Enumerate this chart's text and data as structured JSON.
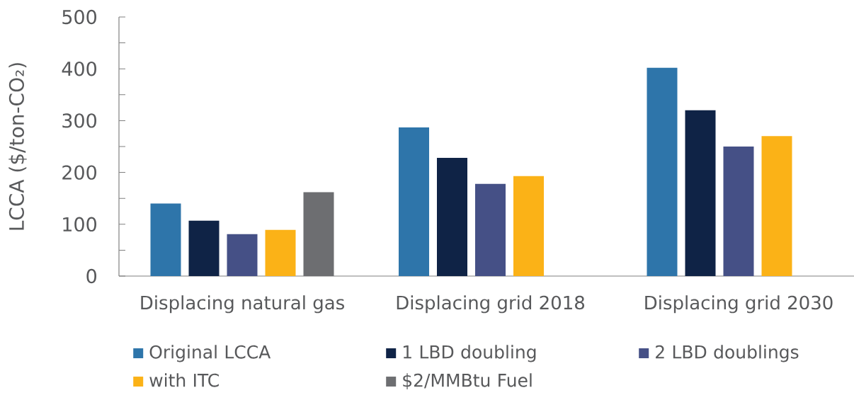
{
  "chart_data": {
    "type": "bar",
    "ylabel": "LCCA ($/ton-CO₂)",
    "categories": [
      "Displacing natural gas",
      "Displacing grid 2018",
      "Displacing grid 2030"
    ],
    "series": [
      {
        "name": "Original LCCA",
        "color": "#2e75aa",
        "values": [
          140,
          287,
          402
        ]
      },
      {
        "name": "1 LBD doubling",
        "color": "#0f2346",
        "values": [
          107,
          228,
          320
        ]
      },
      {
        "name": "2 LBD doublings",
        "color": "#455086",
        "values": [
          81,
          178,
          250
        ]
      },
      {
        "name": "with ITC",
        "color": "#fbb217",
        "values": [
          89,
          193,
          270
        ]
      },
      {
        "name": "$2/MMBtu Fuel",
        "color": "#6d6e71",
        "values": [
          162,
          null,
          null
        ]
      }
    ],
    "ylim": [
      0,
      500
    ],
    "yticks": [
      0,
      {
        "value": 50,
        "label": null
      },
      100,
      {
        "value": 150,
        "label": null
      },
      200,
      {
        "value": 250,
        "label": null
      },
      300,
      {
        "value": 350,
        "label": null
      },
      400,
      {
        "value": 450,
        "label": null
      },
      500
    ],
    "legend": "bottom"
  }
}
